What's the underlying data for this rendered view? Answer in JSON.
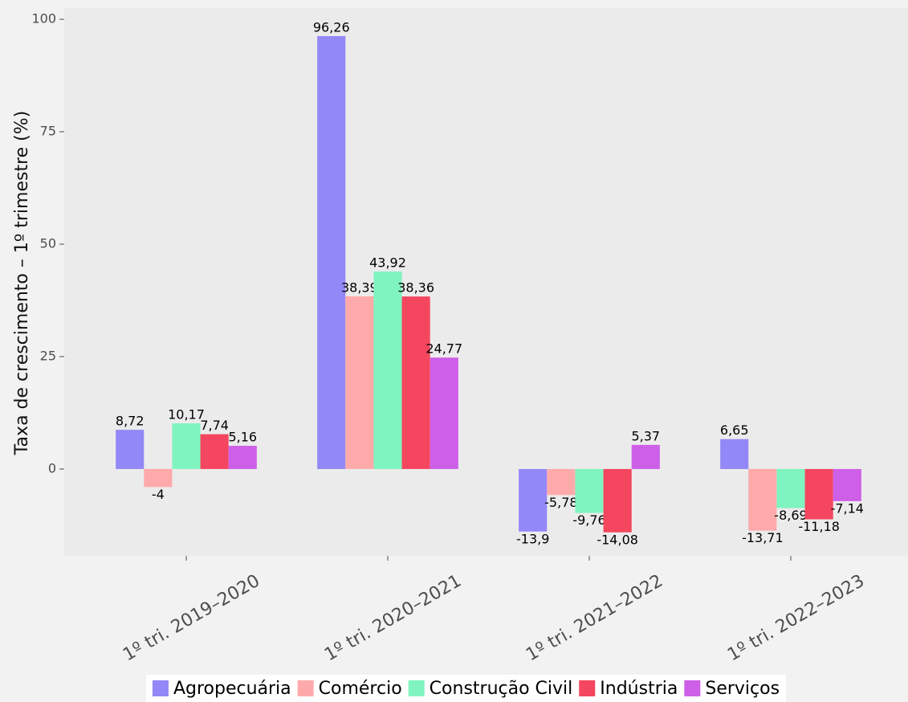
{
  "chart_data": {
    "type": "bar",
    "y_label": "Taxa de crescimento – 1º trimestre (%)",
    "categories": [
      "1º tri. 2019–2020",
      "1º tri. 2020–2021",
      "1º tri. 2021–2022",
      "1º tri. 2022–2023"
    ],
    "series": [
      {
        "name": "Agropecuária",
        "color": "#9388f7",
        "values": [
          8.72,
          96.26,
          -13.9,
          6.65
        ],
        "value_labels": [
          "8,72",
          "96,26",
          "-13,9",
          "6,65"
        ]
      },
      {
        "name": "Comércio",
        "color": "#ffaaaa",
        "values": [
          -4,
          38.39,
          -5.78,
          -13.71
        ],
        "value_labels": [
          "-4",
          "38,39",
          "-5,78",
          "-13,71"
        ]
      },
      {
        "name": "Construção Civil",
        "color": "#80f4c0",
        "values": [
          10.17,
          43.92,
          -9.76,
          -8.69
        ],
        "value_labels": [
          "10,17",
          "43,92",
          "-9,76",
          "-8,69"
        ]
      },
      {
        "name": "Indústria",
        "color": "#f4465e",
        "values": [
          7.74,
          38.36,
          -14.08,
          -11.18
        ],
        "value_labels": [
          "7,74",
          "38,36",
          "-14,08",
          "-11,18"
        ]
      },
      {
        "name": "Serviços",
        "color": "#ce5fe7",
        "values": [
          5.16,
          24.77,
          5.37,
          -7.14
        ],
        "value_labels": [
          "5,16",
          "24,77",
          "5,37",
          "-7,14"
        ]
      }
    ],
    "ylim": [
      -19.3,
      102.5
    ],
    "yticks": [
      0,
      25,
      50,
      75,
      100
    ],
    "grid": false,
    "legend": "bottom"
  }
}
